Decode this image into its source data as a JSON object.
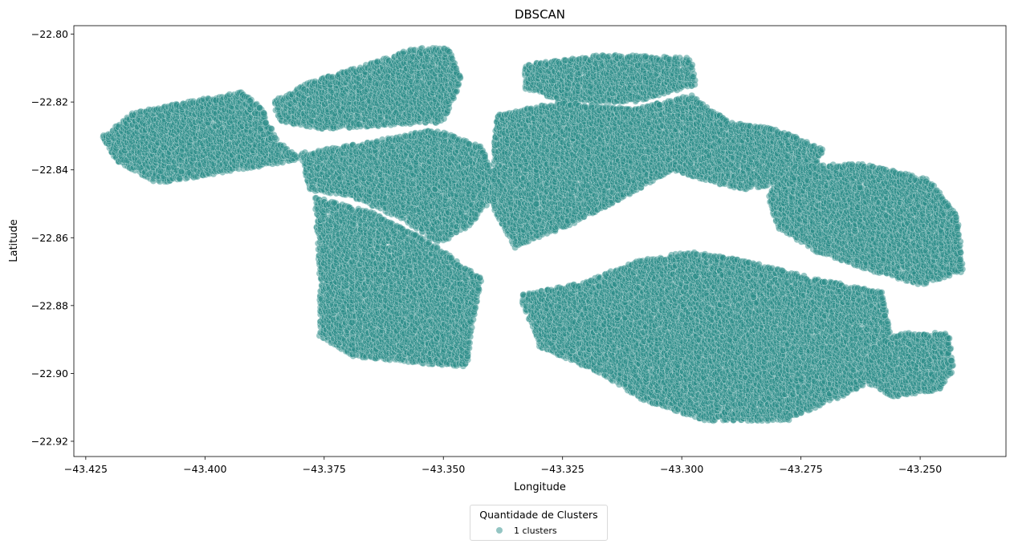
{
  "chart_data": {
    "type": "scatter",
    "title": "DBSCAN",
    "xlabel": "Longitude",
    "ylabel": "Latitude",
    "xlim": [
      -43.4275,
      -43.232
    ],
    "ylim": [
      -22.9245,
      -22.7975
    ],
    "x_ticks": [
      -43.425,
      -43.4,
      -43.375,
      -43.35,
      -43.325,
      -43.3,
      -43.275,
      -43.25
    ],
    "x_tick_labels": [
      "−43.425",
      "−43.400",
      "−43.375",
      "−43.350",
      "−43.325",
      "−43.300",
      "−43.275",
      "−43.250"
    ],
    "y_ticks": [
      -22.8,
      -22.82,
      -22.84,
      -22.86,
      -22.88,
      -22.9,
      -22.92
    ],
    "y_tick_labels": [
      "−22.80",
      "−22.82",
      "−22.84",
      "−22.86",
      "−22.88",
      "−22.90",
      "−22.92"
    ],
    "grid": false,
    "legend_position": "below",
    "legend_title": "Quantidade de Clusters",
    "series": [
      {
        "name": "1 clusters",
        "color": "#2a8c87",
        "point_spacing": 0.00055,
        "regions": [
          [
            [
              -43.4215,
              -22.83
            ],
            [
              -43.415,
              -22.823
            ],
            [
              -43.4,
              -22.819
            ],
            [
              -43.392,
              -22.817
            ],
            [
              -43.388,
              -22.822
            ],
            [
              -43.385,
              -22.831
            ],
            [
              -43.38,
              -22.837
            ],
            [
              -43.393,
              -22.84
            ],
            [
              -43.41,
              -22.844
            ],
            [
              -43.419,
              -22.837
            ]
          ],
          [
            [
              -43.386,
              -22.82
            ],
            [
              -43.378,
              -22.814
            ],
            [
              -43.366,
              -22.809
            ],
            [
              -43.356,
              -22.804
            ],
            [
              -43.349,
              -22.804
            ],
            [
              -43.346,
              -22.813
            ],
            [
              -43.35,
              -22.826
            ],
            [
              -43.362,
              -22.827
            ],
            [
              -43.376,
              -22.828
            ],
            [
              -43.384,
              -22.826
            ]
          ],
          [
            [
              -43.38,
              -22.835
            ],
            [
              -43.366,
              -22.832
            ],
            [
              -43.352,
              -22.828
            ],
            [
              -43.342,
              -22.833
            ],
            [
              -43.338,
              -22.845
            ],
            [
              -43.344,
              -22.856
            ],
            [
              -43.351,
              -22.862
            ],
            [
              -43.358,
              -22.855
            ],
            [
              -43.369,
              -22.848
            ],
            [
              -43.378,
              -22.846
            ]
          ],
          [
            [
              -43.377,
              -22.848
            ],
            [
              -43.364,
              -22.853
            ],
            [
              -43.352,
              -22.862
            ],
            [
              -43.342,
              -22.872
            ],
            [
              -43.344,
              -22.886
            ],
            [
              -43.345,
              -22.898
            ],
            [
              -43.355,
              -22.897
            ],
            [
              -43.369,
              -22.895
            ],
            [
              -43.376,
              -22.889
            ],
            [
              -43.376,
              -22.87
            ]
          ],
          [
            [
              -43.333,
              -22.809
            ],
            [
              -43.316,
              -22.806
            ],
            [
              -43.298,
              -22.807
            ],
            [
              -43.297,
              -22.815
            ],
            [
              -43.31,
              -22.82
            ],
            [
              -43.325,
              -22.82
            ],
            [
              -43.333,
              -22.816
            ]
          ],
          [
            [
              -43.339,
              -22.824
            ],
            [
              -43.326,
              -22.82
            ],
            [
              -43.31,
              -22.822
            ],
            [
              -43.298,
              -22.818
            ],
            [
              -43.29,
              -22.826
            ],
            [
              -43.28,
              -22.828
            ],
            [
              -43.27,
              -22.834
            ],
            [
              -43.274,
              -22.843
            ],
            [
              -43.288,
              -22.846
            ],
            [
              -43.302,
              -22.84
            ],
            [
              -43.312,
              -22.848
            ],
            [
              -43.323,
              -22.856
            ],
            [
              -43.335,
              -22.863
            ],
            [
              -43.34,
              -22.85
            ]
          ],
          [
            [
              -43.276,
              -22.839
            ],
            [
              -43.262,
              -22.838
            ],
            [
              -43.248,
              -22.843
            ],
            [
              -43.242,
              -22.854
            ],
            [
              -43.241,
              -22.87
            ],
            [
              -43.25,
              -22.874
            ],
            [
              -43.262,
              -22.869
            ],
            [
              -43.272,
              -22.864
            ],
            [
              -43.28,
              -22.857
            ],
            [
              -43.282,
              -22.847
            ]
          ],
          [
            [
              -43.334,
              -22.877
            ],
            [
              -43.32,
              -22.873
            ],
            [
              -43.31,
              -22.867
            ],
            [
              -43.298,
              -22.864
            ],
            [
              -43.286,
              -22.867
            ],
            [
              -43.272,
              -22.872
            ],
            [
              -43.258,
              -22.876
            ],
            [
              -43.256,
              -22.89
            ],
            [
              -43.262,
              -22.904
            ],
            [
              -43.278,
              -22.914
            ],
            [
              -43.295,
              -22.914
            ],
            [
              -43.308,
              -22.908
            ],
            [
              -43.317,
              -22.9
            ],
            [
              -43.33,
              -22.892
            ]
          ],
          [
            [
              -43.254,
              -22.888
            ],
            [
              -43.244,
              -22.888
            ],
            [
              -43.243,
              -22.899
            ],
            [
              -43.246,
              -22.905
            ],
            [
              -43.256,
              -22.907
            ],
            [
              -43.262,
              -22.902
            ],
            [
              -43.26,
              -22.892
            ]
          ]
        ]
      }
    ]
  }
}
